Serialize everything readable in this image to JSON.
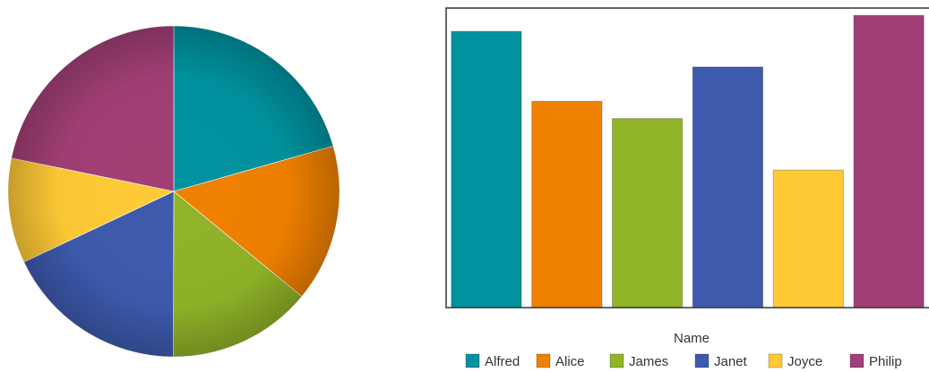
{
  "chart_data": [
    {
      "type": "pie",
      "categories": [
        "Alfred",
        "Alice",
        "James",
        "Janet",
        "Joyce",
        "Philip"
      ],
      "values": [
        112.5,
        84.0,
        77.0,
        98.0,
        56.0,
        119.0
      ],
      "colors": [
        "#00929f",
        "#f08000",
        "#90b328",
        "#3d5aad",
        "#ffca36",
        "#a23f76"
      ],
      "start_angle_deg": 0,
      "direction": "clockwise"
    },
    {
      "type": "bar",
      "categories": [
        "Alfred",
        "Alice",
        "James",
        "Janet",
        "Joyce",
        "Philip"
      ],
      "values": [
        112.5,
        84.0,
        77.0,
        98.0,
        56.0,
        119.0
      ],
      "colors": [
        "#00929f",
        "#f08000",
        "#90b328",
        "#3d5aad",
        "#ffca36",
        "#a23f76"
      ],
      "xlabel": "Name",
      "ylabel": "",
      "ylim": [
        0,
        122
      ],
      "grid": false,
      "legend": "bottom",
      "legend_title": "Name"
    }
  ]
}
